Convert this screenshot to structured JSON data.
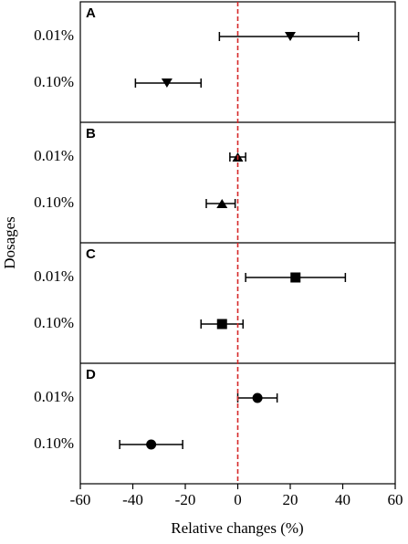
{
  "chart_data": {
    "type": "forest",
    "xlabel": "Relative changes (%)",
    "ylabel": "Dosages",
    "xlim": [
      -60,
      60
    ],
    "xticks": [
      -60,
      -40,
      -20,
      0,
      20,
      40,
      60
    ],
    "refline": 0,
    "refline_color": "#d62728",
    "color": "#000000",
    "categories": [
      "0.01%",
      "0.10%"
    ],
    "panels": [
      {
        "label": "A",
        "marker": "triangle-down",
        "values": [
          20,
          -27
        ],
        "low": [
          -7,
          -39
        ],
        "high": [
          46,
          -14
        ]
      },
      {
        "label": "B",
        "marker": "triangle-up",
        "values": [
          0,
          -6
        ],
        "low": [
          -3,
          -12
        ],
        "high": [
          3,
          -1
        ]
      },
      {
        "label": "C",
        "marker": "square",
        "values": [
          22,
          -6
        ],
        "low": [
          3,
          -14
        ],
        "high": [
          41,
          2
        ]
      },
      {
        "label": "D",
        "marker": "circle",
        "values": [
          7.5,
          -33
        ],
        "low": [
          0,
          -45
        ],
        "high": [
          15,
          -21
        ]
      }
    ]
  }
}
